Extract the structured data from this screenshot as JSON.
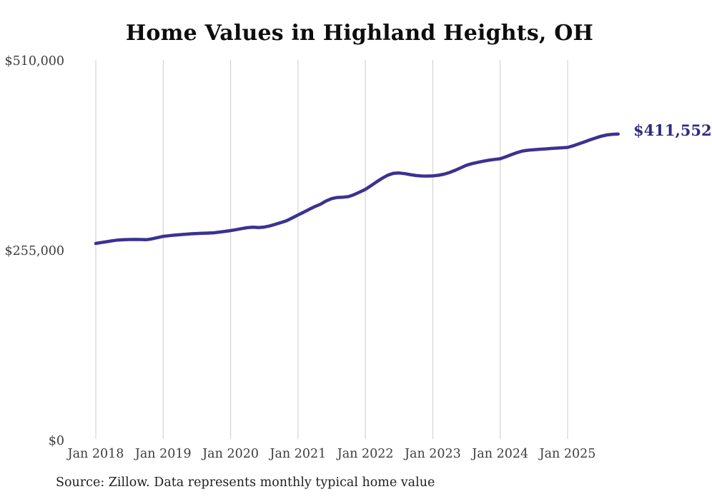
{
  "page": {
    "title": "Home Values in Highland Heights, OH",
    "source_note": "Source: Zillow. Data represents monthly typical home value"
  },
  "chart_data": {
    "type": "line",
    "title": "Home Values in Highland Heights, OH",
    "series_name": "Monthly typical home value",
    "unit": "USD",
    "grid": "vertical-only",
    "legend": "none",
    "ylim": [
      0,
      510000
    ],
    "end_label": "$411,552",
    "last_value": 411552,
    "line_color": "#3a3292",
    "end_label_color": "#2d2b80",
    "grid_color": "#cccccc",
    "axis_text_color": "#3d3d3d",
    "y_ticks": [
      {
        "value": 0,
        "label": "$0"
      },
      {
        "value": 255000,
        "label": "$255,000"
      },
      {
        "value": 510000,
        "label": "$510,000"
      }
    ],
    "x_ticks": [
      {
        "index": 0,
        "label": "Jan 2018"
      },
      {
        "index": 12,
        "label": "Jan 2019"
      },
      {
        "index": 24,
        "label": "Jan 2020"
      },
      {
        "index": 36,
        "label": "Jan 2021"
      },
      {
        "index": 48,
        "label": "Jan 2022"
      },
      {
        "index": 60,
        "label": "Jan 2023"
      },
      {
        "index": 72,
        "label": "Jan 2024"
      },
      {
        "index": 84,
        "label": "Jan 2025"
      }
    ],
    "x": [
      "2018-01",
      "2018-02",
      "2018-03",
      "2018-04",
      "2018-05",
      "2018-06",
      "2018-07",
      "2018-08",
      "2018-09",
      "2018-10",
      "2018-11",
      "2018-12",
      "2019-01",
      "2019-02",
      "2019-03",
      "2019-04",
      "2019-05",
      "2019-06",
      "2019-07",
      "2019-08",
      "2019-09",
      "2019-10",
      "2019-11",
      "2019-12",
      "2020-01",
      "2020-02",
      "2020-03",
      "2020-04",
      "2020-05",
      "2020-06",
      "2020-07",
      "2020-08",
      "2020-09",
      "2020-10",
      "2020-11",
      "2020-12",
      "2021-01",
      "2021-02",
      "2021-03",
      "2021-04",
      "2021-05",
      "2021-06",
      "2021-07",
      "2021-08",
      "2021-09",
      "2021-10",
      "2021-11",
      "2021-12",
      "2022-01",
      "2022-02",
      "2022-03",
      "2022-04",
      "2022-05",
      "2022-06",
      "2022-07",
      "2022-08",
      "2022-09",
      "2022-10",
      "2022-11",
      "2022-12",
      "2023-01",
      "2023-02",
      "2023-03",
      "2023-04",
      "2023-05",
      "2023-06",
      "2023-07",
      "2023-08",
      "2023-09",
      "2023-10",
      "2023-11",
      "2023-12",
      "2024-01",
      "2024-02",
      "2024-03",
      "2024-04",
      "2024-05",
      "2024-06",
      "2024-07",
      "2024-08",
      "2024-09",
      "2024-10",
      "2024-11",
      "2024-12",
      "2025-01",
      "2025-02",
      "2025-03",
      "2025-04",
      "2025-05",
      "2025-06",
      "2025-07",
      "2025-08",
      "2025-09",
      "2025-10"
    ],
    "values": [
      264600,
      265800,
      267000,
      268200,
      269200,
      269700,
      269900,
      270000,
      269900,
      269600,
      270700,
      272400,
      274100,
      274900,
      275700,
      276400,
      277000,
      277500,
      277900,
      278200,
      278500,
      278900,
      279800,
      280800,
      281800,
      283100,
      284500,
      285800,
      286300,
      285900,
      286500,
      288200,
      290400,
      292700,
      295200,
      298900,
      302800,
      306500,
      310400,
      314100,
      317200,
      321500,
      324800,
      326300,
      326700,
      327500,
      330200,
      333600,
      337200,
      342100,
      347300,
      352100,
      356300,
      358700,
      359200,
      358300,
      357000,
      355800,
      355200,
      355100,
      355300,
      356100,
      357600,
      359900,
      362800,
      366200,
      369700,
      371800,
      373500,
      375000,
      376400,
      377400,
      378300,
      381000,
      383800,
      386500,
      388700,
      389800,
      390500,
      391000,
      391500,
      392100,
      392600,
      393000,
      393500,
      395700,
      398300,
      401000,
      403700,
      406300,
      408600,
      410300,
      411200,
      411552
    ]
  }
}
